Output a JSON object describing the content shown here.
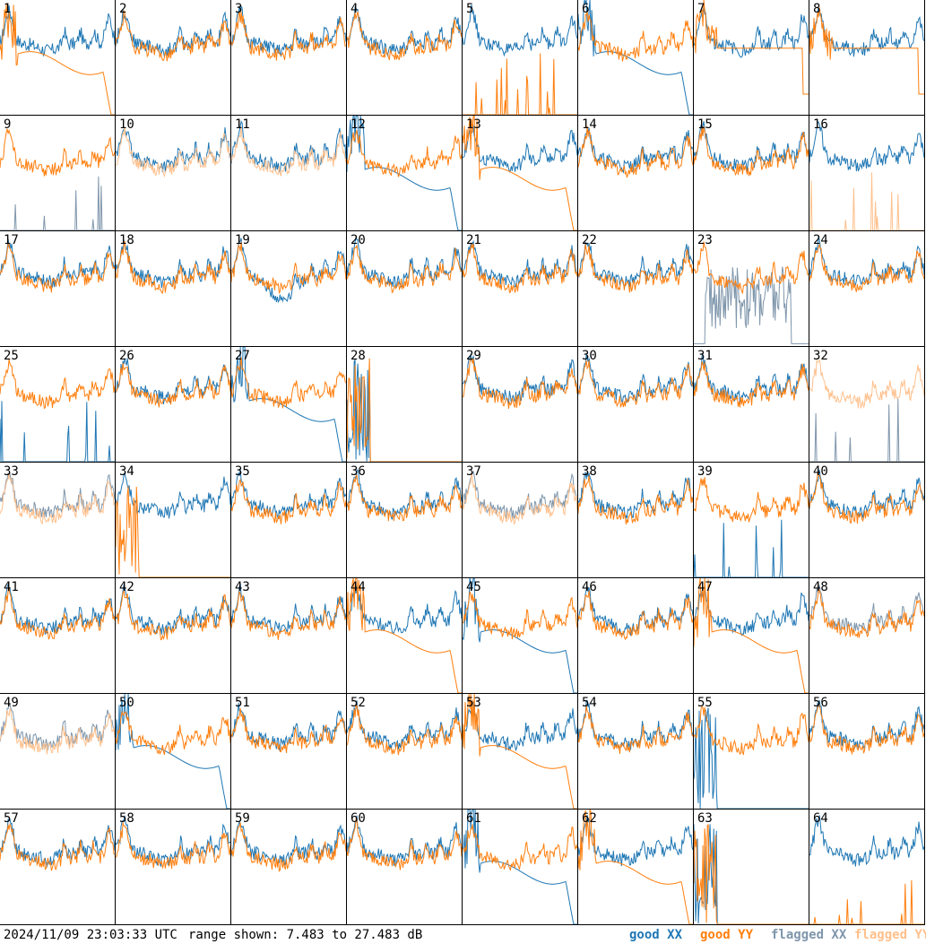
{
  "chart_data": {
    "type": "line",
    "panels": [
      1,
      2,
      3,
      4,
      5,
      6,
      7,
      8,
      9,
      10,
      11,
      12,
      13,
      14,
      15,
      16,
      17,
      18,
      19,
      20,
      21,
      22,
      23,
      24,
      25,
      26,
      27,
      28,
      29,
      30,
      31,
      32,
      33,
      34,
      35,
      36,
      37,
      38,
      39,
      40,
      41,
      42,
      43,
      44,
      45,
      46,
      47,
      48,
      49,
      50,
      51,
      52,
      53,
      54,
      55,
      56,
      57,
      58,
      59,
      60,
      61,
      62,
      63,
      64
    ],
    "grid": {
      "rows": 8,
      "cols": 8
    },
    "series": [
      {
        "name": "good XX",
        "color": "#1f77b4"
      },
      {
        "name": "good YY",
        "color": "#ff7f0e"
      },
      {
        "name": "flagged XX",
        "color": "#7f96ab"
      },
      {
        "name": "flagged YY",
        "color": "#ffc08c"
      }
    ],
    "panel_modes": {
      "1": [
        "g",
        "rolloff"
      ],
      "2": [
        "g",
        "g"
      ],
      "3": [
        "g",
        "g"
      ],
      "4": [
        "g",
        "g"
      ],
      "5": [
        "g",
        "spikes"
      ],
      "6": [
        "rolloff",
        "g"
      ],
      "7": [
        "g",
        "flat"
      ],
      "8": [
        "g",
        "flat"
      ],
      "9": [
        "fspikes",
        "g"
      ],
      "10": [
        "g",
        "fg"
      ],
      "11": [
        "g",
        "fg"
      ],
      "12": [
        "rolloff",
        "g"
      ],
      "13": [
        "g",
        "rolloff"
      ],
      "14": [
        "g",
        "g"
      ],
      "15": [
        "g",
        "g"
      ],
      "16": [
        "g",
        "fspikes"
      ],
      "17": [
        "g",
        "g"
      ],
      "18": [
        "g",
        "g"
      ],
      "19": [
        "dip",
        "g"
      ],
      "20": [
        "g",
        "g"
      ],
      "21": [
        "g",
        "g"
      ],
      "22": [
        "g",
        "g"
      ],
      "23": [
        "fnoise",
        "g"
      ],
      "24": [
        "g",
        "g"
      ],
      "25": [
        "spikes",
        "g"
      ],
      "26": [
        "g",
        "g"
      ],
      "27": [
        "rolloff",
        "g"
      ],
      "28": [
        "dead",
        "dead"
      ],
      "29": [
        "g",
        "g"
      ],
      "30": [
        "g",
        "g"
      ],
      "31": [
        "g",
        "g"
      ],
      "32": [
        "fspikes",
        "fg"
      ],
      "33": [
        "fg",
        "fg"
      ],
      "34": [
        "g",
        "dead"
      ],
      "35": [
        "g",
        "g"
      ],
      "36": [
        "g",
        "g"
      ],
      "37": [
        "fg",
        "fg"
      ],
      "38": [
        "g",
        "g"
      ],
      "39": [
        "spikes",
        "g"
      ],
      "40": [
        "g",
        "g"
      ],
      "41": [
        "g",
        "g"
      ],
      "42": [
        "g",
        "g"
      ],
      "43": [
        "g",
        "g"
      ],
      "44": [
        "g",
        "rolloff"
      ],
      "45": [
        "rolloff",
        "g"
      ],
      "46": [
        "g",
        "g"
      ],
      "47": [
        "g",
        "rolloff"
      ],
      "48": [
        "fg",
        "g"
      ],
      "49": [
        "fg",
        "fg"
      ],
      "50": [
        "rolloff",
        "g"
      ],
      "51": [
        "g",
        "g"
      ],
      "52": [
        "g",
        "g"
      ],
      "53": [
        "g",
        "rolloff"
      ],
      "54": [
        "g",
        "g"
      ],
      "55": [
        "dead",
        "g"
      ],
      "56": [
        "g",
        "g"
      ],
      "57": [
        "g",
        "g"
      ],
      "58": [
        "g",
        "g"
      ],
      "59": [
        "g",
        "g"
      ],
      "60": [
        "g",
        "g"
      ],
      "61": [
        "rolloff",
        "g"
      ],
      "62": [
        "g",
        "rolloff"
      ],
      "63": [
        "dead",
        "dead"
      ],
      "64": [
        "g",
        "spikes"
      ]
    },
    "range_db": [
      7.483,
      27.483
    ]
  },
  "footer": {
    "timestamp": "2024/11/09 23:03:33 UTC",
    "range_text": "range shown: 7.483 to 27.483 dB",
    "legend": {
      "good_xx": "good XX",
      "good_yy": "good YY",
      "flagged_xx": "flagged XX",
      "flagged_yy": "flagged YY"
    }
  }
}
